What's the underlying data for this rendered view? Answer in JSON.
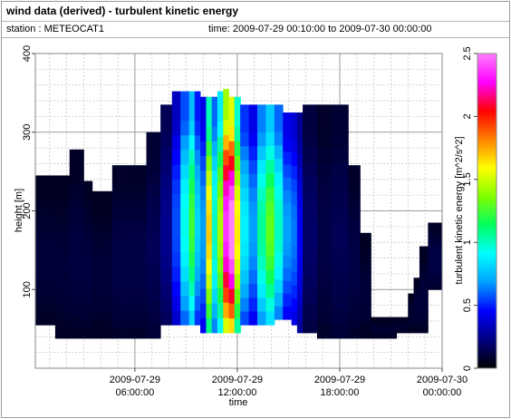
{
  "header": {
    "title": "wind data (derived) - turbulent kinetic energy",
    "station": "station : METEOCAT1",
    "time_range": "time: 2009-07-29 00:10:00 to 2009-07-30 00:00:00"
  },
  "chart_data": {
    "type": "heatmap",
    "xlabel": "time",
    "ylabel": "height [m]",
    "colorbar_label": "turbulent kinetic energy [m^2/s^2]",
    "xlim": [
      "2009-07-29 00:10:00",
      "2009-07-30 00:00:00"
    ],
    "ylim": [
      0,
      400
    ],
    "x_ticks": [
      {
        "value": "2009-07-29 06:00:00",
        "line1": "2009-07-29",
        "line2": "06:00:00"
      },
      {
        "value": "2009-07-29 12:00:00",
        "line1": "2009-07-29",
        "line2": "12:00:00"
      },
      {
        "value": "2009-07-29 18:00:00",
        "line1": "2009-07-29",
        "line2": "18:00:00"
      },
      {
        "value": "2009-07-30 00:00:00",
        "line1": "2009-07-30",
        "line2": "00:00:00"
      }
    ],
    "y_ticks": [
      100,
      200,
      300,
      400
    ],
    "colorbar_ticks": [
      0,
      0.5,
      1,
      1.5,
      2,
      2.5
    ],
    "colorbar_range": [
      0,
      2.5
    ],
    "grid": true,
    "colormap": [
      "#000000",
      "#000080",
      "#0000ff",
      "#00a0ff",
      "#00ffff",
      "#00ff60",
      "#80ff00",
      "#ffff00",
      "#ff8000",
      "#ff0000",
      "#ff00ff",
      "#ff80ff"
    ],
    "time_step_minutes": 10,
    "data_columns": [
      {
        "start_hour": 0.167,
        "end_hour": 1.33,
        "bottom_m": 55,
        "top_m": 245,
        "tke": 0.08
      },
      {
        "start_hour": 1.33,
        "end_hour": 2.17,
        "bottom_m": 38,
        "top_m": 245,
        "tke": 0.08
      },
      {
        "start_hour": 2.17,
        "end_hour": 3.0,
        "bottom_m": 38,
        "top_m": 278,
        "tke": 0.09
      },
      {
        "start_hour": 3.0,
        "end_hour": 3.5,
        "bottom_m": 38,
        "top_m": 238,
        "tke": 0.09
      },
      {
        "start_hour": 3.5,
        "end_hour": 4.67,
        "bottom_m": 38,
        "top_m": 225,
        "tke": 0.08
      },
      {
        "start_hour": 4.67,
        "end_hour": 6.67,
        "bottom_m": 38,
        "top_m": 258,
        "tke": 0.1
      },
      {
        "start_hour": 6.67,
        "end_hour": 7.5,
        "bottom_m": 38,
        "top_m": 300,
        "tke": 0.12
      },
      {
        "start_hour": 7.5,
        "end_hour": 8.17,
        "bottom_m": 55,
        "top_m": 335,
        "tke": 0.2
      },
      {
        "start_hour": 8.17,
        "end_hour": 8.67,
        "bottom_m": 55,
        "top_m": 352,
        "tke": 0.45
      },
      {
        "start_hour": 8.67,
        "end_hour": 9.17,
        "bottom_m": 55,
        "top_m": 352,
        "tke": 0.75
      },
      {
        "start_hour": 9.17,
        "end_hour": 9.5,
        "bottom_m": 55,
        "top_m": 352,
        "tke": 1.0
      },
      {
        "start_hour": 9.5,
        "end_hour": 9.83,
        "bottom_m": 55,
        "top_m": 352,
        "tke": 0.65
      },
      {
        "start_hour": 9.83,
        "end_hour": 10.17,
        "bottom_m": 45,
        "top_m": 345,
        "tke": 0.55
      },
      {
        "start_hour": 10.17,
        "end_hour": 10.5,
        "bottom_m": 45,
        "top_m": 345,
        "tke": 1.35
      },
      {
        "start_hour": 10.5,
        "end_hour": 10.83,
        "bottom_m": 45,
        "top_m": 345,
        "tke": 0.8
      },
      {
        "start_hour": 10.83,
        "end_hour": 11.17,
        "bottom_m": 45,
        "top_m": 352,
        "tke": 1.15
      },
      {
        "start_hour": 11.17,
        "end_hour": 11.5,
        "bottom_m": 45,
        "top_m": 355,
        "tke": 1.9
      },
      {
        "start_hour": 11.5,
        "end_hour": 11.83,
        "bottom_m": 45,
        "top_m": 345,
        "tke": 2.05
      },
      {
        "start_hour": 11.83,
        "end_hour": 12.17,
        "bottom_m": 45,
        "top_m": 345,
        "tke": 1.3
      },
      {
        "start_hour": 12.17,
        "end_hour": 12.67,
        "bottom_m": 55,
        "top_m": 335,
        "tke": 0.7
      },
      {
        "start_hour": 12.67,
        "end_hour": 13.17,
        "bottom_m": 55,
        "top_m": 335,
        "tke": 0.55
      },
      {
        "start_hour": 13.17,
        "end_hour": 13.67,
        "bottom_m": 55,
        "top_m": 335,
        "tke": 0.85
      },
      {
        "start_hour": 13.67,
        "end_hour": 14.17,
        "bottom_m": 55,
        "top_m": 335,
        "tke": 1.05
      },
      {
        "start_hour": 14.17,
        "end_hour": 14.67,
        "bottom_m": 62,
        "top_m": 335,
        "tke": 0.8
      },
      {
        "start_hour": 14.67,
        "end_hour": 15.17,
        "bottom_m": 62,
        "top_m": 325,
        "tke": 0.55
      },
      {
        "start_hour": 15.17,
        "end_hour": 15.5,
        "bottom_m": 55,
        "top_m": 325,
        "tke": 0.5
      },
      {
        "start_hour": 15.5,
        "end_hour": 15.83,
        "bottom_m": 45,
        "top_m": 325,
        "tke": 0.35
      },
      {
        "start_hour": 15.83,
        "end_hour": 16.67,
        "bottom_m": 45,
        "top_m": 335,
        "tke": 0.15
      },
      {
        "start_hour": 16.67,
        "end_hour": 17.5,
        "bottom_m": 38,
        "top_m": 335,
        "tke": 0.1
      },
      {
        "start_hour": 17.5,
        "end_hour": 18.5,
        "bottom_m": 38,
        "top_m": 335,
        "tke": 0.12
      },
      {
        "start_hour": 18.5,
        "end_hour": 19.17,
        "bottom_m": 38,
        "top_m": 258,
        "tke": 0.1
      },
      {
        "start_hour": 19.17,
        "end_hour": 19.83,
        "bottom_m": 38,
        "top_m": 172,
        "tke": 0.08
      },
      {
        "start_hour": 19.83,
        "end_hour": 21.33,
        "bottom_m": 38,
        "top_m": 65,
        "tke": 0.07
      },
      {
        "start_hour": 21.33,
        "end_hour": 22.0,
        "bottom_m": 45,
        "top_m": 65,
        "tke": 0.07
      },
      {
        "start_hour": 22.0,
        "end_hour": 22.33,
        "bottom_m": 45,
        "top_m": 95,
        "tke": 0.07
      },
      {
        "start_hour": 22.33,
        "end_hour": 22.67,
        "bottom_m": 45,
        "top_m": 115,
        "tke": 0.08
      },
      {
        "start_hour": 22.67,
        "end_hour": 23.17,
        "bottom_m": 45,
        "top_m": 155,
        "tke": 0.08
      },
      {
        "start_hour": 23.17,
        "end_hour": 24.0,
        "bottom_m": 100,
        "top_m": 185,
        "tke": 0.1
      }
    ]
  }
}
